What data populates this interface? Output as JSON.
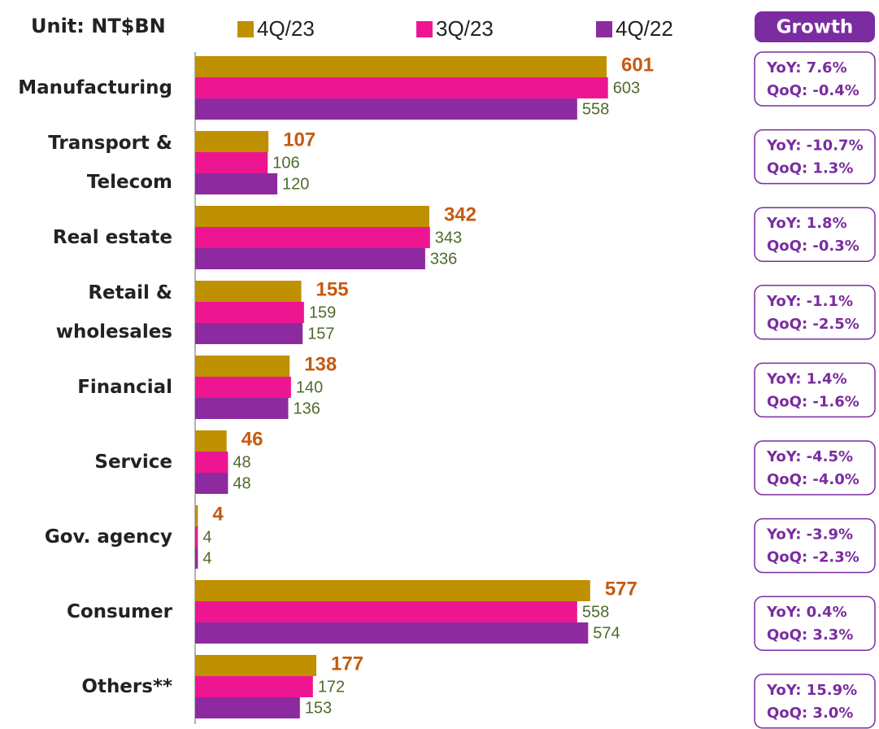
{
  "chart_data": {
    "type": "bar",
    "orientation": "horizontal",
    "unit_label": "Unit: NT$BN",
    "categories": [
      "Manufacturing",
      "Transport &\nTelecom",
      "Real estate",
      "Retail &\nwholesales",
      "Financial",
      "Service",
      "Gov. agency",
      "Consumer",
      "Others**"
    ],
    "series": [
      {
        "name": "4Q/23",
        "color": "#bf9000",
        "values": [
          601,
          107,
          342,
          155,
          138,
          46,
          4,
          577,
          177
        ]
      },
      {
        "name": "3Q/23",
        "color": "#ee1690",
        "values": [
          603,
          106,
          343,
          159,
          140,
          48,
          4,
          558,
          172
        ]
      },
      {
        "name": "4Q/22",
        "color": "#8e2aa0",
        "values": [
          558,
          120,
          336,
          157,
          136,
          48,
          4,
          574,
          153
        ]
      }
    ],
    "xlim": [
      0,
      700
    ],
    "growth": {
      "title": "Growth",
      "yoy": [
        "YoY: 7.6%",
        "YoY: -10.7%",
        "YoY: 1.8%",
        "YoY: -1.1%",
        "YoY: 1.4%",
        "YoY: -4.5%",
        "YoY: -3.9%",
        "YoY: 0.4%",
        "YoY: 15.9%"
      ],
      "qoq": [
        "QoQ: -0.4%",
        "QoQ: 1.3%",
        "QoQ: -0.3%",
        "QoQ: -2.5%",
        "QoQ: -1.6%",
        "QoQ: -4.0%",
        "QoQ: -2.3%",
        "QoQ: 3.3%",
        "QoQ: 3.0%"
      ]
    }
  }
}
